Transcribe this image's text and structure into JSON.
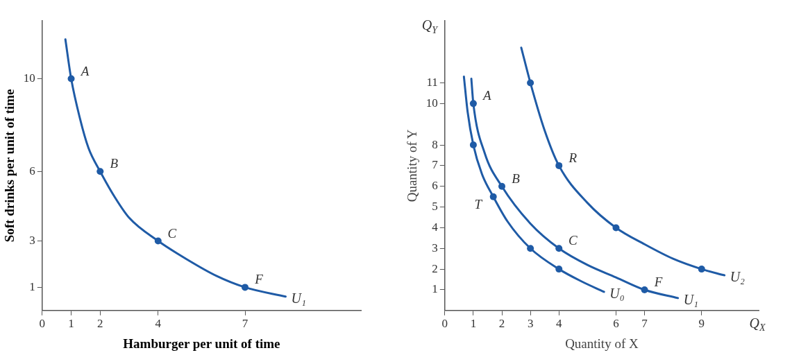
{
  "chart_data": [
    {
      "type": "line",
      "xlabel": "Hamburger per unit of time",
      "ylabel": "Soft drinks per unit of time",
      "xlim": [
        0,
        11
      ],
      "ylim": [
        0,
        12.5
      ],
      "xticks": [
        0,
        1,
        2,
        4,
        7
      ],
      "yticks": [
        1,
        3,
        6,
        10
      ],
      "grid": false,
      "legend": false,
      "line_style": "solid",
      "series": [
        {
          "name": "U₁",
          "type": "line",
          "marker": "none",
          "color": "#1f5ba6",
          "x": [
            0.8,
            1,
            1.3,
            1.6,
            2,
            2.5,
            3,
            4,
            5,
            6,
            7,
            8.4
          ],
          "values": [
            11.7,
            10,
            8.3,
            7,
            6,
            4.9,
            4,
            3,
            2.2,
            1.5,
            1,
            0.6
          ]
        },
        {
          "type": "scatter",
          "marker": "circle",
          "color": "#1f5ba6",
          "x": [
            1,
            2,
            4,
            7
          ],
          "values": [
            10,
            6,
            3,
            1
          ]
        }
      ],
      "annotations": [
        {
          "text": "A",
          "x": 1,
          "y": 10
        },
        {
          "text": "B",
          "x": 2,
          "y": 6
        },
        {
          "text": "C",
          "x": 4,
          "y": 3
        },
        {
          "text": "F",
          "x": 7,
          "y": 1
        }
      ]
    },
    {
      "type": "line",
      "xlabel": "Quantity of X",
      "ylabel": "Quantity of Y",
      "xlim": [
        0,
        11
      ],
      "ylim": [
        0,
        14
      ],
      "xticks": [
        0,
        1,
        2,
        3,
        4,
        6,
        7,
        9
      ],
      "yticks": [
        1,
        2,
        3,
        4,
        5,
        6,
        7,
        8,
        10,
        11
      ],
      "grid": false,
      "legend": false,
      "line_style": "solid",
      "series": [
        {
          "name": "U₀",
          "type": "line",
          "marker": "none",
          "color": "#1f5ba6",
          "x": [
            0.67,
            0.8,
            1,
            1.3,
            1.7,
            2.2,
            3,
            4,
            4.8,
            5.58
          ],
          "values": [
            11.3,
            9.6,
            8,
            6.6,
            5.5,
            4.3,
            3,
            2,
            1.4,
            0.9
          ]
        },
        {
          "name": "U₁",
          "type": "line",
          "marker": "none",
          "color": "#1f5ba6",
          "x": [
            0.93,
            1,
            1.4,
            2,
            3,
            4,
            5,
            6,
            7,
            8.17
          ],
          "values": [
            11.2,
            10,
            7.6,
            6,
            4.2,
            3,
            2.2,
            1.6,
            1,
            0.6
          ]
        },
        {
          "name": "U₂",
          "type": "line",
          "marker": "none",
          "color": "#1f5ba6",
          "x": [
            2.68,
            3,
            3.5,
            4,
            5,
            6,
            7,
            8,
            9,
            9.8
          ],
          "values": [
            12.7,
            11,
            8.7,
            7,
            5.2,
            4,
            3.2,
            2.5,
            2,
            1.7
          ]
        },
        {
          "type": "scatter",
          "marker": "circle",
          "color": "#1f5ba6",
          "x": [
            1,
            1.7,
            3,
            4,
            1,
            2,
            4,
            7,
            3,
            4,
            6,
            9
          ],
          "values": [
            8,
            5.5,
            3,
            2,
            10,
            6,
            3,
            1,
            11,
            7,
            4,
            2
          ]
        }
      ],
      "annotations": [
        {
          "text": "A",
          "x": 1,
          "y": 10
        },
        {
          "text": "B",
          "x": 2,
          "y": 6
        },
        {
          "text": "T",
          "x": 1.7,
          "y": 5.5
        },
        {
          "text": "R",
          "x": 4,
          "y": 7
        },
        {
          "text": "C",
          "x": 4,
          "y": 3
        },
        {
          "text": "F",
          "x": 7,
          "y": 1
        },
        "Q$_{Y}$",
        "Q$_{X}$"
      ]
    }
  ]
}
